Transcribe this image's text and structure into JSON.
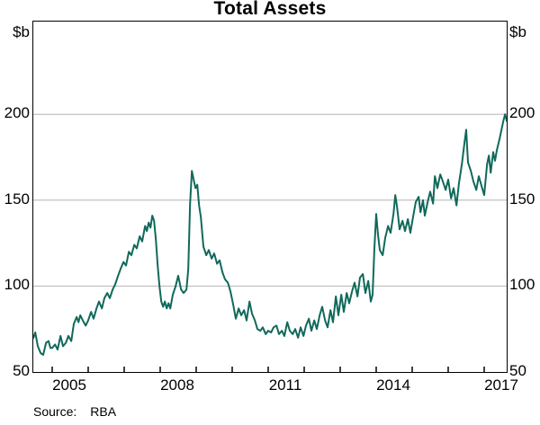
{
  "header": {
    "title": "Total Assets"
  },
  "axes": {
    "left_unit": "$b",
    "right_unit": "$b"
  },
  "footer": {
    "source_label": "Source:",
    "source_value": "RBA"
  },
  "colors": {
    "line": "#10695b",
    "grid": "#b4b4b4",
    "axis": "#000000",
    "background": "#ffffff"
  },
  "chart_data": {
    "type": "line",
    "title": "Total Assets",
    "ylabel": "$b",
    "xlabel": "",
    "grid": "horizontal",
    "legend": "none",
    "xlim": [
      2004.475,
      2017.625
    ],
    "ylim": [
      50,
      254
    ],
    "y_ticks": [
      50,
      100,
      150,
      200
    ],
    "x_ticks": [
      2005,
      2008,
      2011,
      2014,
      2017
    ],
    "x_minor_tick_step_years": 1,
    "series": [
      {
        "name": "Total Assets",
        "color": "#10695b",
        "x": [
          2004.48,
          2004.53,
          2004.6,
          2004.68,
          2004.75,
          2004.83,
          2004.9,
          2004.95,
          2005.0,
          2005.08,
          2005.15,
          2005.23,
          2005.3,
          2005.38,
          2005.45,
          2005.53,
          2005.6,
          2005.68,
          2005.73,
          2005.78,
          2005.85,
          2005.93,
          2006.0,
          2006.08,
          2006.15,
          2006.23,
          2006.3,
          2006.38,
          2006.45,
          2006.53,
          2006.6,
          2006.68,
          2006.75,
          2006.83,
          2006.9,
          2006.98,
          2007.05,
          2007.13,
          2007.2,
          2007.28,
          2007.35,
          2007.43,
          2007.5,
          2007.58,
          2007.63,
          2007.68,
          2007.73,
          2007.78,
          2007.83,
          2007.88,
          2007.93,
          2007.98,
          2008.03,
          2008.08,
          2008.13,
          2008.18,
          2008.23,
          2008.28,
          2008.35,
          2008.43,
          2008.5,
          2008.58,
          2008.65,
          2008.73,
          2008.78,
          2008.83,
          2008.88,
          2008.93,
          2008.98,
          2009.03,
          2009.08,
          2009.13,
          2009.2,
          2009.28,
          2009.35,
          2009.43,
          2009.5,
          2009.58,
          2009.65,
          2009.73,
          2009.8,
          2009.88,
          2009.95,
          2010.03,
          2010.1,
          2010.18,
          2010.25,
          2010.33,
          2010.4,
          2010.48,
          2010.55,
          2010.63,
          2010.7,
          2010.78,
          2010.85,
          2010.93,
          2011.0,
          2011.08,
          2011.15,
          2011.23,
          2011.3,
          2011.38,
          2011.45,
          2011.53,
          2011.6,
          2011.68,
          2011.75,
          2011.83,
          2011.9,
          2011.98,
          2012.05,
          2012.13,
          2012.2,
          2012.28,
          2012.35,
          2012.43,
          2012.5,
          2012.58,
          2012.65,
          2012.73,
          2012.8,
          2012.88,
          2012.95,
          2013.03,
          2013.1,
          2013.18,
          2013.25,
          2013.33,
          2013.4,
          2013.48,
          2013.55,
          2013.63,
          2013.7,
          2013.78,
          2013.85,
          2013.9,
          2013.95,
          2014.0,
          2014.05,
          2014.1,
          2014.18,
          2014.25,
          2014.33,
          2014.4,
          2014.48,
          2014.53,
          2014.58,
          2014.65,
          2014.73,
          2014.8,
          2014.88,
          2014.95,
          2015.03,
          2015.1,
          2015.18,
          2015.23,
          2015.3,
          2015.35,
          2015.43,
          2015.5,
          2015.58,
          2015.63,
          2015.7,
          2015.78,
          2015.85,
          2015.93,
          2016.0,
          2016.08,
          2016.15,
          2016.23,
          2016.3,
          2016.38,
          2016.45,
          2016.5,
          2016.55,
          2016.63,
          2016.7,
          2016.78,
          2016.85,
          2016.93,
          2017.0,
          2017.08,
          2017.13,
          2017.18,
          2017.25,
          2017.3,
          2017.35,
          2017.43,
          2017.48,
          2017.53,
          2017.58,
          2017.63
        ],
        "values": [
          70,
          73,
          65,
          61,
          60,
          67,
          68,
          64,
          64,
          66,
          63,
          71,
          65,
          67,
          71,
          68,
          78,
          82,
          79,
          83,
          80,
          77,
          80,
          85,
          81,
          87,
          91,
          87,
          93,
          96,
          93,
          98,
          101,
          106,
          110,
          114,
          112,
          120,
          118,
          124,
          122,
          129,
          126,
          135,
          132,
          137,
          134,
          141,
          138,
          127,
          112,
          100,
          91,
          88,
          91,
          87,
          90,
          87,
          95,
          100,
          106,
          98,
          96,
          98,
          110,
          148,
          167,
          162,
          157,
          159,
          147,
          140,
          123,
          118,
          121,
          116,
          119,
          113,
          115,
          108,
          104,
          102,
          97,
          89,
          81,
          87,
          83,
          86,
          80,
          91,
          84,
          80,
          75,
          74,
          76,
          72,
          74,
          73,
          76,
          77,
          72,
          74,
          71,
          79,
          74,
          72,
          75,
          70,
          76,
          71,
          77,
          81,
          74,
          80,
          75,
          83,
          88,
          80,
          76,
          86,
          79,
          94,
          83,
          95,
          85,
          96,
          90,
          97,
          102,
          94,
          105,
          107,
          96,
          103,
          91,
          95,
          122,
          142,
          130,
          121,
          118,
          128,
          135,
          131,
          142,
          153,
          146,
          133,
          138,
          132,
          139,
          131,
          141,
          149,
          152,
          143,
          150,
          141,
          149,
          155,
          148,
          164,
          157,
          165,
          161,
          156,
          162,
          151,
          157,
          147,
          160,
          171,
          183,
          191,
          172,
          167,
          161,
          156,
          164,
          158,
          153,
          171,
          176,
          166,
          178,
          173,
          179,
          186,
          191,
          196,
          200,
          196
        ]
      }
    ]
  }
}
